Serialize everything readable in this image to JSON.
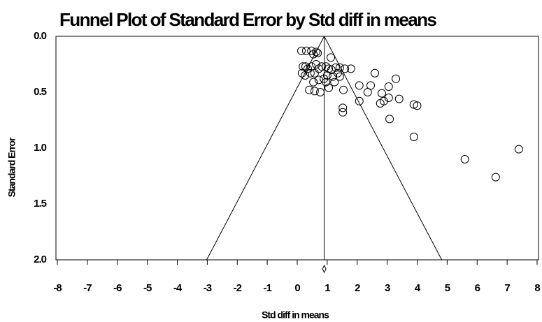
{
  "chart_data": {
    "type": "scatter",
    "title": "Funnel Plot of Standard Error by Std diff in means",
    "x_label": "Std diff in means",
    "y_label": "Standard Error",
    "xlim": [
      -8,
      8
    ],
    "ylim": [
      2,
      0
    ],
    "xticks": [
      -8,
      -7,
      -6,
      -5,
      -4,
      -3,
      -2,
      -1,
      0,
      1,
      2,
      3,
      4,
      5,
      6,
      7,
      8
    ],
    "yticks": [
      {
        "value": 0,
        "label": "0.0"
      },
      0.5,
      {
        "value": 1,
        "label": "1.0"
      },
      1.5,
      {
        "value": 2,
        "label": "2.0"
      }
    ],
    "summary_effect": 0.9,
    "color": "#000000",
    "x": [
      0.14,
      0.3,
      0.47,
      0.63,
      0.54,
      0.68,
      0.19,
      0.28,
      0.47,
      0.63,
      0.35,
      0.16,
      0.26,
      0.44,
      0.58,
      0.72,
      0.82,
      0.96,
      1.05,
      1.14,
      1.28,
      1.42,
      1.59,
      1.79,
      1.12,
      1.0,
      1.19,
      1.35,
      1.42,
      1.24,
      0.89,
      0.96,
      1.05,
      0.72,
      0.54,
      0.4,
      0.58,
      0.77,
      1.54,
      2.07,
      2.45,
      2.59,
      2.35,
      3.05,
      3.29,
      3.05,
      2.82,
      3.4,
      2.77,
      2.89,
      2.07,
      1.52,
      1.52,
      3.08,
      3.89,
      4.0,
      3.89,
      5.59,
      6.62,
      7.39
    ],
    "values": [
      0.13,
      0.13,
      0.13,
      0.14,
      0.16,
      0.15,
      0.27,
      0.27,
      0.27,
      0.25,
      0.29,
      0.33,
      0.35,
      0.33,
      0.33,
      0.29,
      0.27,
      0.27,
      0.29,
      0.3,
      0.28,
      0.28,
      0.29,
      0.29,
      0.19,
      0.35,
      0.36,
      0.33,
      0.36,
      0.41,
      0.38,
      0.41,
      0.46,
      0.39,
      0.41,
      0.48,
      0.49,
      0.5,
      0.48,
      0.44,
      0.44,
      0.33,
      0.5,
      0.45,
      0.38,
      0.55,
      0.51,
      0.56,
      0.6,
      0.58,
      0.58,
      0.64,
      0.68,
      0.74,
      0.61,
      0.62,
      0.9,
      1.1,
      1.26,
      1.01
    ]
  }
}
